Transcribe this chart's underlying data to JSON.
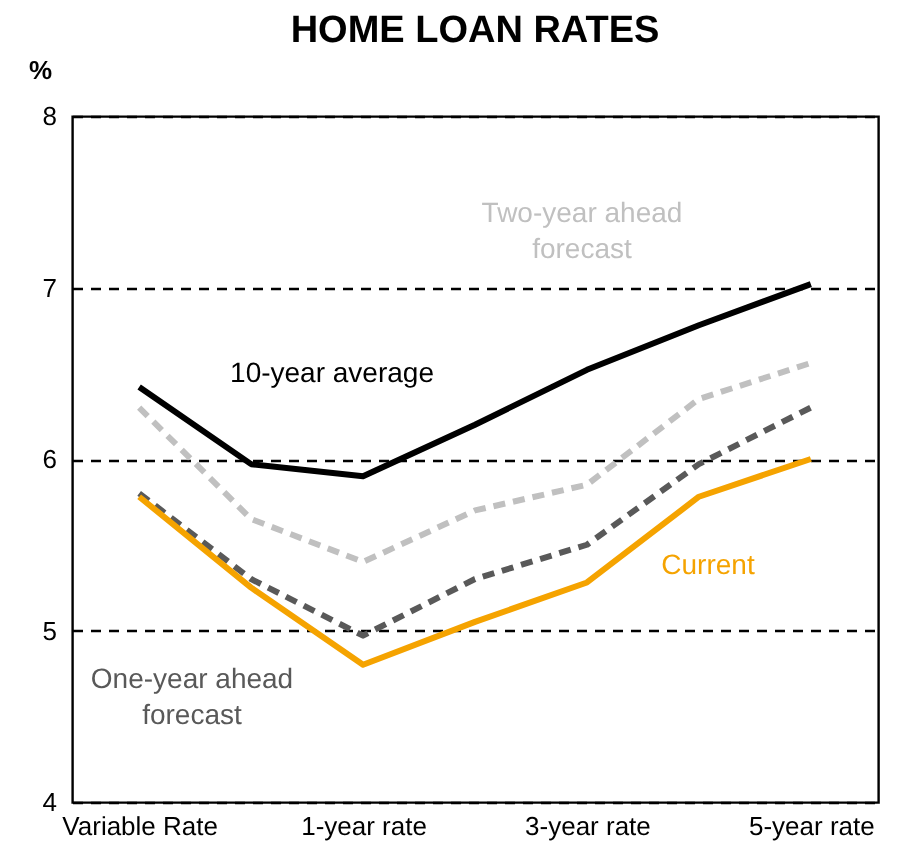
{
  "chart_data": {
    "type": "line",
    "title": "HOME LOAN RATES",
    "ylabel": "%",
    "categories": [
      "Variable Rate",
      null,
      "1-year rate",
      null,
      "3-year rate",
      null,
      "5-year rate"
    ],
    "series": [
      {
        "name": "10-year average",
        "color": "#000000",
        "line_style": "solid",
        "values": [
          6.42,
          5.97,
          5.9,
          6.2,
          6.52,
          6.78,
          7.02
        ]
      },
      {
        "name": "Two-year ahead\nforecast",
        "color": "#c0c0c0",
        "line_style": "dashed",
        "values": [
          6.3,
          5.65,
          5.4,
          5.7,
          5.85,
          6.35,
          6.56
        ]
      },
      {
        "name": "One-year ahead\nforecast",
        "color": "#595959",
        "line_style": "dashed",
        "values": [
          5.8,
          5.3,
          4.97,
          5.3,
          5.5,
          5.97,
          6.3
        ]
      },
      {
        "name": "Current",
        "color": "#f5a300",
        "line_style": "solid",
        "values": [
          5.78,
          5.25,
          4.8,
          5.05,
          5.28,
          5.78,
          6.0
        ]
      }
    ],
    "ylim": [
      4,
      8
    ],
    "yticks": [
      4,
      5,
      6,
      7,
      8
    ],
    "grid": "y",
    "legend": false
  }
}
